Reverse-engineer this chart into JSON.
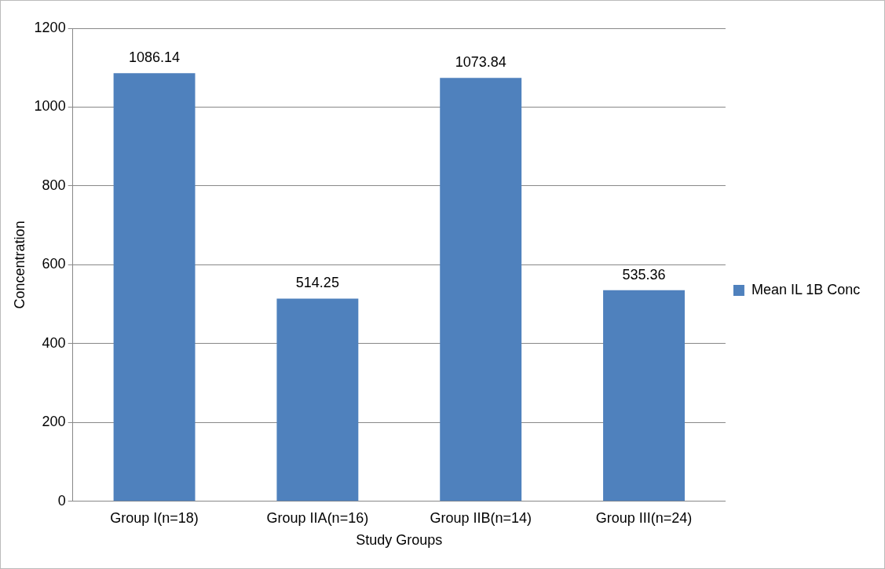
{
  "chart_data": {
    "type": "bar",
    "xlabel": "Study Groups",
    "ylabel": "Concentration",
    "categories": [
      "Group I(n=18)",
      "Group IIA(n=16)",
      "Group IIB(n=14)",
      "Group III(n=24)"
    ],
    "series": [
      {
        "name": "Mean IL 1B Conc",
        "color": "#4f81bd",
        "values": [
          1086.14,
          514.25,
          1073.84,
          535.36
        ]
      }
    ],
    "ylim": [
      0,
      1200
    ],
    "yticks": [
      0,
      200,
      400,
      600,
      800,
      1000,
      1200
    ],
    "grid": "y",
    "legend": "right",
    "data_labels": true
  }
}
